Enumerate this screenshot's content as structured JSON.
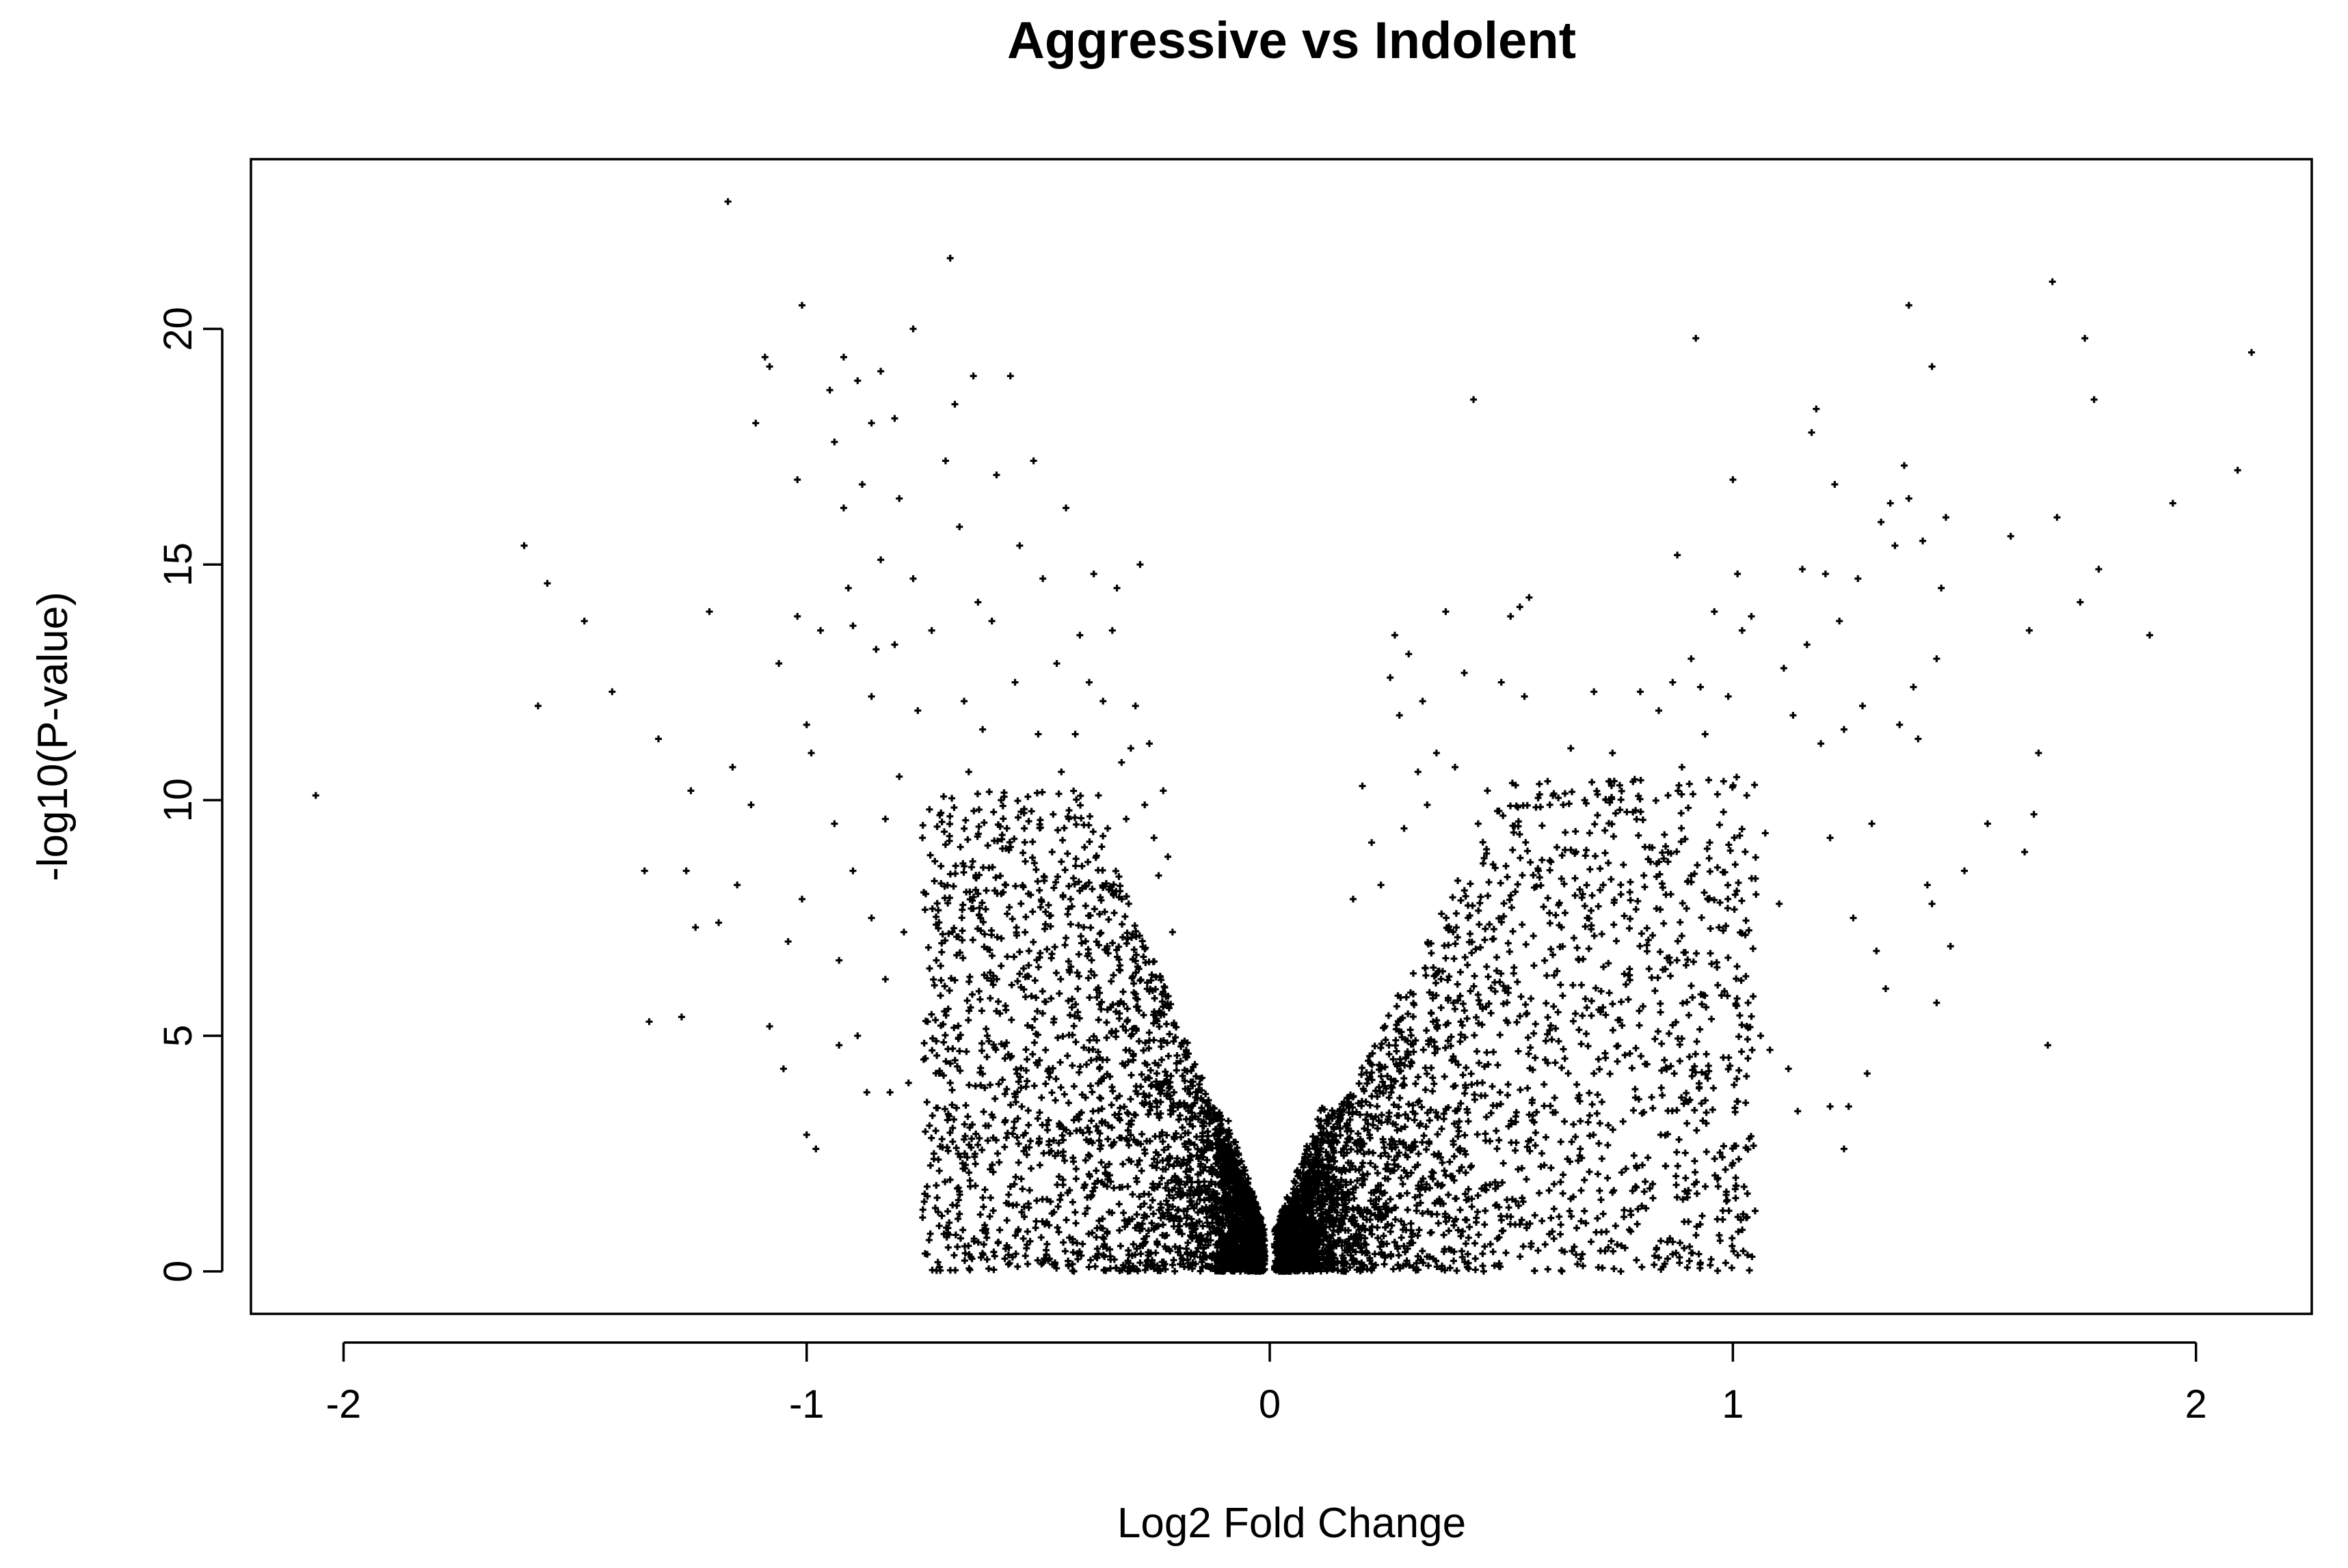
{
  "chart_data": {
    "type": "scatter",
    "title": "Aggressive vs Indolent",
    "xlabel": "Log2 Fold Change",
    "ylabel": "-log10(P-value)",
    "xlim": [
      -2.2,
      2.25
    ],
    "ylim": [
      -0.9,
      23.6
    ],
    "x_ticks": [
      -2,
      -1,
      0,
      1,
      2
    ],
    "y_ticks": [
      0,
      5,
      10,
      15,
      20
    ],
    "x_tick_labels": [
      "-2",
      "-1",
      "0",
      "1",
      "2"
    ],
    "y_tick_labels": [
      "0",
      "5",
      "10",
      "15",
      "20"
    ],
    "marker": "+",
    "color": "#000000",
    "grid": false,
    "legend": "none",
    "points": [
      [
        -2.06,
        10.1
      ],
      [
        -1.61,
        15.4
      ],
      [
        -1.58,
        12.0
      ],
      [
        -1.56,
        14.6
      ],
      [
        -1.48,
        13.8
      ],
      [
        -1.42,
        12.3
      ],
      [
        -1.35,
        8.5
      ],
      [
        -1.34,
        5.3
      ],
      [
        -1.32,
        11.3
      ],
      [
        -1.27,
        5.4
      ],
      [
        -1.26,
        8.5
      ],
      [
        -1.25,
        10.2
      ],
      [
        -1.24,
        7.3
      ],
      [
        -1.21,
        14.0
      ],
      [
        -1.19,
        7.4
      ],
      [
        -1.17,
        22.7
      ],
      [
        -1.16,
        10.7
      ],
      [
        -1.15,
        8.2
      ],
      [
        -1.12,
        9.9
      ],
      [
        -1.11,
        18.0
      ],
      [
        -1.09,
        19.4
      ],
      [
        -1.08,
        19.2
      ],
      [
        -1.08,
        5.2
      ],
      [
        -1.06,
        12.9
      ],
      [
        -1.05,
        4.3
      ],
      [
        -1.04,
        7.0
      ],
      [
        -1.02,
        16.8
      ],
      [
        -1.02,
        13.9
      ],
      [
        -1.01,
        20.5
      ],
      [
        -1.01,
        7.9
      ],
      [
        -1.0,
        11.6
      ],
      [
        -1.0,
        2.9
      ],
      [
        -0.99,
        11.0
      ],
      [
        -0.98,
        2.6
      ],
      [
        -0.97,
        13.6
      ],
      [
        -0.95,
        18.7
      ],
      [
        -0.94,
        17.6
      ],
      [
        -0.94,
        9.5
      ],
      [
        -0.93,
        6.6
      ],
      [
        -0.93,
        4.8
      ],
      [
        -0.92,
        19.4
      ],
      [
        -0.92,
        16.2
      ],
      [
        -0.91,
        14.5
      ],
      [
        -0.9,
        13.7
      ],
      [
        -0.9,
        8.5
      ],
      [
        -0.89,
        18.9
      ],
      [
        -0.89,
        5.0
      ],
      [
        -0.88,
        16.7
      ],
      [
        -0.87,
        3.8
      ],
      [
        -0.86,
        18.0
      ],
      [
        -0.86,
        12.2
      ],
      [
        -0.86,
        7.5
      ],
      [
        -0.85,
        13.2
      ],
      [
        -0.84,
        19.1
      ],
      [
        -0.84,
        15.1
      ],
      [
        -0.83,
        9.6
      ],
      [
        -0.83,
        6.2
      ],
      [
        -0.82,
        3.8
      ],
      [
        -0.81,
        18.1
      ],
      [
        -0.81,
        13.3
      ],
      [
        -0.8,
        16.4
      ],
      [
        -0.8,
        10.5
      ],
      [
        -0.79,
        7.2
      ],
      [
        -0.78,
        4.0
      ],
      [
        -0.77,
        20.0
      ],
      [
        -0.77,
        14.7
      ],
      [
        -0.76,
        11.9
      ],
      [
        -0.75,
        9.2
      ],
      [
        -0.74,
        1.8
      ],
      [
        -0.73,
        13.6
      ],
      [
        -0.72,
        6.6
      ],
      [
        -0.71,
        8.6
      ],
      [
        -0.7,
        17.2
      ],
      [
        -0.69,
        21.5
      ],
      [
        -0.69,
        4.0
      ],
      [
        -0.68,
        18.4
      ],
      [
        -0.67,
        15.8
      ],
      [
        -0.66,
        12.1
      ],
      [
        -0.66,
        2.8
      ],
      [
        -0.65,
        10.6
      ],
      [
        -0.64,
        19.0
      ],
      [
        -0.64,
        7.7
      ],
      [
        -0.63,
        14.2
      ],
      [
        -0.62,
        11.5
      ],
      [
        -0.61,
        5.0
      ],
      [
        -0.6,
        13.8
      ],
      [
        -0.59,
        16.9
      ],
      [
        -0.58,
        10.0
      ],
      [
        -0.57,
        8.2
      ],
      [
        -0.56,
        19.0
      ],
      [
        -0.56,
        1.8
      ],
      [
        -0.55,
        12.5
      ],
      [
        -0.54,
        15.4
      ],
      [
        -0.53,
        9.4
      ],
      [
        -0.52,
        6.8
      ],
      [
        -0.51,
        17.2
      ],
      [
        -0.5,
        11.4
      ],
      [
        -0.49,
        14.7
      ],
      [
        -0.48,
        3.0
      ],
      [
        -0.47,
        8.9
      ],
      [
        -0.46,
        12.9
      ],
      [
        -0.45,
        10.6
      ],
      [
        -0.44,
        16.2
      ],
      [
        -0.43,
        7.9
      ],
      [
        -0.42,
        11.4
      ],
      [
        -0.41,
        13.5
      ],
      [
        -0.4,
        9.0
      ],
      [
        -0.39,
        12.5
      ],
      [
        -0.38,
        14.8
      ],
      [
        -0.37,
        10.1
      ],
      [
        -0.36,
        12.1
      ],
      [
        -0.35,
        9.4
      ],
      [
        -0.34,
        13.6
      ],
      [
        -0.33,
        14.5
      ],
      [
        -0.32,
        10.8
      ],
      [
        -0.31,
        9.6
      ],
      [
        -0.3,
        11.1
      ],
      [
        -0.29,
        12.0
      ],
      [
        -0.28,
        15.0
      ],
      [
        -0.27,
        9.9
      ],
      [
        -0.26,
        11.2
      ],
      [
        -0.25,
        9.2
      ],
      [
        -0.24,
        8.4
      ],
      [
        -0.23,
        10.2
      ],
      [
        -0.22,
        8.8
      ],
      [
        -0.21,
        7.2
      ],
      [
        0.18,
        7.9
      ],
      [
        0.2,
        10.3
      ],
      [
        0.22,
        9.1
      ],
      [
        0.24,
        8.2
      ],
      [
        0.26,
        12.6
      ],
      [
        0.27,
        13.5
      ],
      [
        0.28,
        11.8
      ],
      [
        0.29,
        9.4
      ],
      [
        0.3,
        13.1
      ],
      [
        0.32,
        10.6
      ],
      [
        0.33,
        12.1
      ],
      [
        0.34,
        9.9
      ],
      [
        0.36,
        11.0
      ],
      [
        0.38,
        14.0
      ],
      [
        0.4,
        10.7
      ],
      [
        0.42,
        12.7
      ],
      [
        0.44,
        18.5
      ],
      [
        0.45,
        9.5
      ],
      [
        0.47,
        10.2
      ],
      [
        0.5,
        12.5
      ],
      [
        0.52,
        13.9
      ],
      [
        0.54,
        14.1
      ],
      [
        0.55,
        12.2
      ],
      [
        0.56,
        14.3
      ],
      [
        0.58,
        8.5
      ],
      [
        0.6,
        10.4
      ],
      [
        0.62,
        9.0
      ],
      [
        0.65,
        11.1
      ],
      [
        0.68,
        10.0
      ],
      [
        0.7,
        12.3
      ],
      [
        0.72,
        8.2
      ],
      [
        0.74,
        11.0
      ],
      [
        0.76,
        2.1
      ],
      [
        0.78,
        1.2
      ],
      [
        0.8,
        12.3
      ],
      [
        0.82,
        9.0
      ],
      [
        0.84,
        11.9
      ],
      [
        0.86,
        10.1
      ],
      [
        0.87,
        12.5
      ],
      [
        0.88,
        15.2
      ],
      [
        0.89,
        10.7
      ],
      [
        0.9,
        7.7
      ],
      [
        0.91,
        13.0
      ],
      [
        0.92,
        19.8
      ],
      [
        0.93,
        12.4
      ],
      [
        0.94,
        11.4
      ],
      [
        0.95,
        9.1
      ],
      [
        0.96,
        14.0
      ],
      [
        0.97,
        7.3
      ],
      [
        0.98,
        10.4
      ],
      [
        0.99,
        12.2
      ],
      [
        1.0,
        16.8
      ],
      [
        1.0,
        2.3
      ],
      [
        1.01,
        14.8
      ],
      [
        1.02,
        13.6
      ],
      [
        1.03,
        10.1
      ],
      [
        1.04,
        13.9
      ],
      [
        1.05,
        8.0
      ],
      [
        1.06,
        5.0
      ],
      [
        1.07,
        9.3
      ],
      [
        1.08,
        4.7
      ],
      [
        1.1,
        7.8
      ],
      [
        1.11,
        12.8
      ],
      [
        1.12,
        4.3
      ],
      [
        1.13,
        11.8
      ],
      [
        1.14,
        3.4
      ],
      [
        1.15,
        14.9
      ],
      [
        1.16,
        13.3
      ],
      [
        1.17,
        17.8
      ],
      [
        1.18,
        18.3
      ],
      [
        1.19,
        11.2
      ],
      [
        1.2,
        14.8
      ],
      [
        1.21,
        9.2
      ],
      [
        1.21,
        3.5
      ],
      [
        1.22,
        16.7
      ],
      [
        1.23,
        13.8
      ],
      [
        1.24,
        11.5
      ],
      [
        1.24,
        2.6
      ],
      [
        1.25,
        3.5
      ],
      [
        1.26,
        7.5
      ],
      [
        1.27,
        14.7
      ],
      [
        1.28,
        12.0
      ],
      [
        1.29,
        4.2
      ],
      [
        1.3,
        9.5
      ],
      [
        1.31,
        6.8
      ],
      [
        1.32,
        15.9
      ],
      [
        1.33,
        6.0
      ],
      [
        1.34,
        16.3
      ],
      [
        1.35,
        15.4
      ],
      [
        1.36,
        11.6
      ],
      [
        1.37,
        17.1
      ],
      [
        1.38,
        20.5
      ],
      [
        1.38,
        16.4
      ],
      [
        1.39,
        12.4
      ],
      [
        1.4,
        11.3
      ],
      [
        1.41,
        15.5
      ],
      [
        1.42,
        8.2
      ],
      [
        1.43,
        19.2
      ],
      [
        1.43,
        7.8
      ],
      [
        1.44,
        13.0
      ],
      [
        1.44,
        5.7
      ],
      [
        1.45,
        14.5
      ],
      [
        1.46,
        16.0
      ],
      [
        1.47,
        6.9
      ],
      [
        1.5,
        8.5
      ],
      [
        1.55,
        9.5
      ],
      [
        1.6,
        15.6
      ],
      [
        1.63,
        8.9
      ],
      [
        1.64,
        13.6
      ],
      [
        1.65,
        9.7
      ],
      [
        1.66,
        11.0
      ],
      [
        1.68,
        4.8
      ],
      [
        1.69,
        21.0
      ],
      [
        1.7,
        16.0
      ],
      [
        1.75,
        14.2
      ],
      [
        1.76,
        19.8
      ],
      [
        1.78,
        18.5
      ],
      [
        1.79,
        14.9
      ],
      [
        1.9,
        13.5
      ],
      [
        1.95,
        16.3
      ],
      [
        2.09,
        17.0
      ],
      [
        2.12,
        19.5
      ]
    ]
  }
}
